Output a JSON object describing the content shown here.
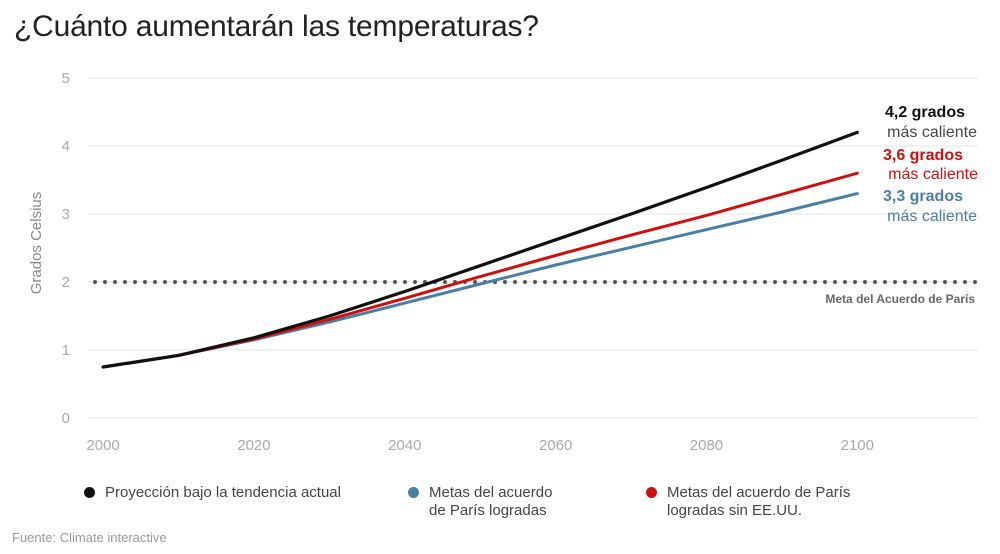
{
  "title": "¿Cuánto aumentarán las temperaturas?",
  "source": {
    "label": "Fuente:",
    "text": "Climate interactive"
  },
  "colors": {
    "black": "#111111",
    "red": "#cc1111",
    "blue": "#4a7fa5",
    "grid": "#e3e3e3",
    "tick": "#a9a9a9",
    "reference": "#555555"
  },
  "chart_data": {
    "type": "line",
    "title": "¿Cuánto aumentarán las temperaturas?",
    "ylabel": "Grados Celsius",
    "xlabel": "",
    "xlim": [
      1998,
      2116
    ],
    "ylim": [
      0,
      5
    ],
    "xticks": [
      2000,
      2020,
      2040,
      2060,
      2080,
      2100
    ],
    "yticks": [
      0,
      1,
      2,
      3,
      4,
      5
    ],
    "grid": true,
    "reference_line": {
      "y": 2,
      "label": "Meta del Acuerdo de París",
      "style": "dotted"
    },
    "series": [
      {
        "name": "Proyección bajo la tendencia actual",
        "color": "#111111",
        "x": [
          2000,
          2010,
          2020,
          2030,
          2040,
          2050,
          2060,
          2070,
          2080,
          2090,
          2100
        ],
        "y": [
          0.75,
          0.92,
          1.18,
          1.5,
          1.86,
          2.24,
          2.62,
          3.0,
          3.39,
          3.79,
          4.2
        ]
      },
      {
        "name": "Metas del acuerdo de París logradas sin EE.UU.",
        "color": "#cc1111",
        "x": [
          2000,
          2010,
          2020,
          2030,
          2040,
          2050,
          2060,
          2070,
          2080,
          2090,
          2100
        ],
        "y": [
          0.75,
          0.92,
          1.16,
          1.45,
          1.76,
          2.08,
          2.39,
          2.69,
          2.98,
          3.29,
          3.6
        ]
      },
      {
        "name": "Metas del acuerdo de París logradas",
        "color": "#4a7fa5",
        "x": [
          2000,
          2010,
          2020,
          2030,
          2040,
          2050,
          2060,
          2070,
          2080,
          2090,
          2100
        ],
        "y": [
          0.75,
          0.92,
          1.15,
          1.41,
          1.69,
          1.97,
          2.25,
          2.51,
          2.77,
          3.03,
          3.3
        ]
      }
    ],
    "annotations": [
      {
        "value": "4,2 grados",
        "sub": "más caliente",
        "color": "#111111"
      },
      {
        "value": "3,6 grados",
        "sub": "más caliente",
        "color": "#cc1111"
      },
      {
        "value": "3,3 grados",
        "sub": "más caliente",
        "color": "#4a7fa5"
      }
    ],
    "legend": {
      "placement": "bottom",
      "items": [
        {
          "label": "Proyección bajo la tendencia actual",
          "color": "#111111"
        },
        {
          "label": "Metas del acuerdo\nde París logradas",
          "color": "#4a7fa5"
        },
        {
          "label": "Metas del acuerdo de París\nlogradas sin EE.UU.",
          "color": "#cc1111"
        }
      ]
    }
  }
}
